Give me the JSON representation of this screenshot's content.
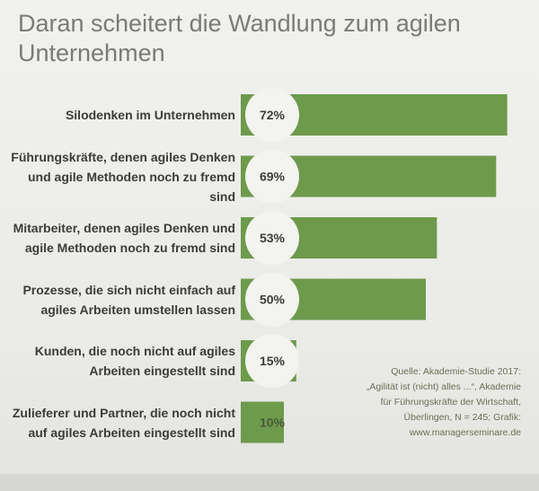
{
  "title_lines": [
    "Daran scheitert die Wandlung zum agilen",
    "Unternehmen"
  ],
  "chart_data": {
    "type": "bar",
    "orientation": "horizontal",
    "title": "Daran scheitert die Wandlung zum agilen Unternehmen",
    "categories": [
      [
        "Silodenken im Unternehmen"
      ],
      [
        "Führungskräfte, denen agiles Denken",
        "und agile Methoden noch zu fremd sind"
      ],
      [
        "Mitarbeiter, denen agiles Denken und",
        "agile Methoden noch zu fremd sind"
      ],
      [
        "Prozesse, die sich nicht einfach auf",
        "agiles Arbeiten umstellen lassen"
      ],
      [
        "Kunden, die noch nicht auf agiles",
        "Arbeiten eingestellt sind"
      ],
      [
        "Zulieferer und Partner, die noch nicht",
        "auf agiles Arbeiten eingestellt sind"
      ]
    ],
    "values": [
      72,
      69,
      53,
      50,
      15,
      10
    ],
    "value_labels": [
      "72%",
      "69%",
      "53%",
      "50%",
      "15%",
      "10%"
    ],
    "unit": "%",
    "xlim": [
      0,
      100
    ],
    "bar_color": "#6e9a4c",
    "circle_color": "#f3f3ef",
    "grid": false
  },
  "source_lines": [
    "Quelle: Akademie-Studie 2017:",
    "„Agilität ist (nicht) alles ...“, Akademie",
    "für Führungskräfte der Wirtschaft,",
    "Überlingen, N = 245; Grafik:",
    "www.managerseminare.de"
  ],
  "colors": {
    "background": "#ecedea",
    "title": "#7a7a77",
    "label": "#3c3c3a",
    "source": "#6a6f57"
  }
}
